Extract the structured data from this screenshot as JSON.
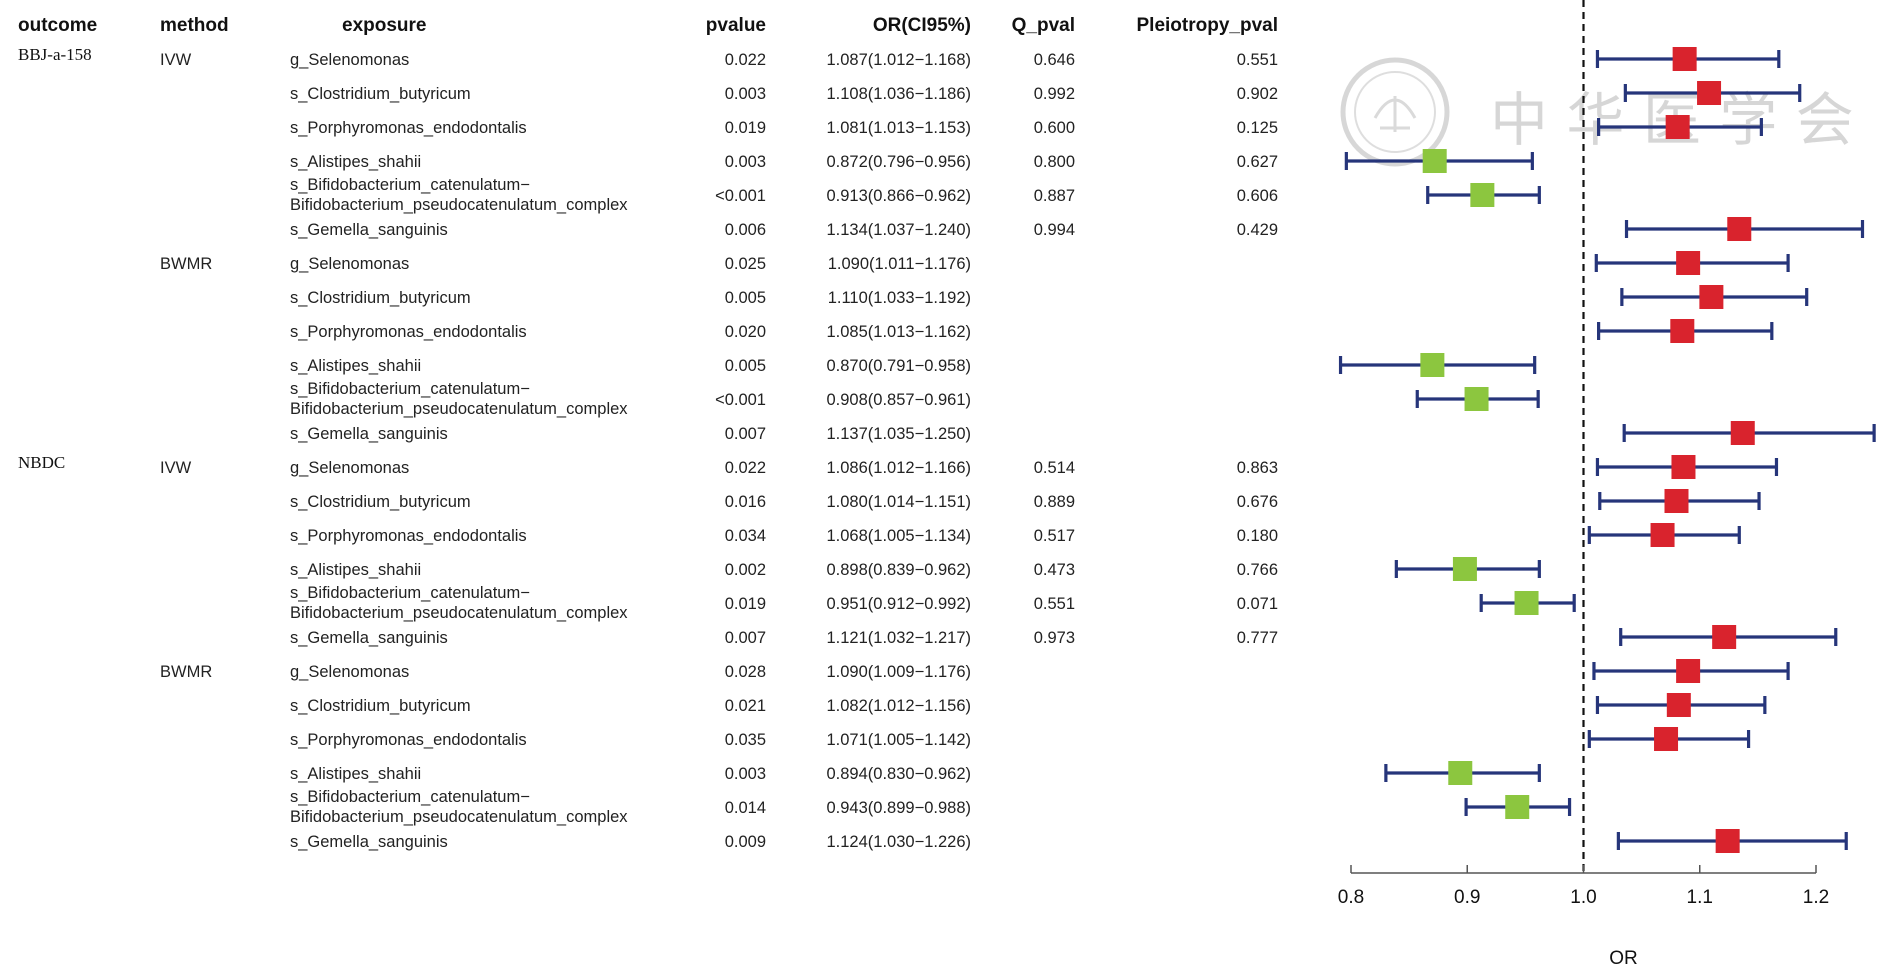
{
  "chart_data": {
    "type": "forest",
    "headers": {
      "outcome": "outcome",
      "method": "method",
      "exposure": "exposure",
      "pvalue": "pvalue",
      "or_ci": "OR(CI95%)",
      "q_pval": "Q_pval",
      "pleiotropy_pval": "Pleiotropy_pval"
    },
    "xlabel": "OR",
    "xlim": [
      0.8,
      1.2
    ],
    "xticks": [
      "0.8",
      "0.9",
      "1.0",
      "1.1",
      "1.2"
    ],
    "reference_line": 1.0,
    "colors": {
      "protective": "#8cc63f",
      "risk": "#d9232d",
      "ci": "#26357a"
    },
    "watermark": {
      "text": "中 华 医 学 会"
    },
    "rows": [
      {
        "outcome": "BBJ-a-158",
        "method": "IVW",
        "exposure": [
          "g_Selenomonas"
        ],
        "pvalue": "0.022",
        "or_ci": "1.087(1.012−1.168)",
        "q_pval": "0.646",
        "pleio_pval": "0.551",
        "or": 1.087,
        "lo": 1.012,
        "hi": 1.168
      },
      {
        "outcome": "",
        "method": "",
        "exposure": [
          "s_Clostridium_butyricum"
        ],
        "pvalue": "0.003",
        "or_ci": "1.108(1.036−1.186)",
        "q_pval": "0.992",
        "pleio_pval": "0.902",
        "or": 1.108,
        "lo": 1.036,
        "hi": 1.186
      },
      {
        "outcome": "",
        "method": "",
        "exposure": [
          "s_Porphyromonas_endodontalis"
        ],
        "pvalue": "0.019",
        "or_ci": "1.081(1.013−1.153)",
        "q_pval": "0.600",
        "pleio_pval": "0.125",
        "or": 1.081,
        "lo": 1.013,
        "hi": 1.153
      },
      {
        "outcome": "",
        "method": "",
        "exposure": [
          "s_Alistipes_shahii"
        ],
        "pvalue": "0.003",
        "or_ci": "0.872(0.796−0.956)",
        "q_pval": "0.800",
        "pleio_pval": "0.627",
        "or": 0.872,
        "lo": 0.796,
        "hi": 0.956
      },
      {
        "outcome": "",
        "method": "",
        "exposure": [
          "s_Bifidobacterium_catenulatum−",
          "Bifidobacterium_pseudocatenulatum_complex"
        ],
        "pvalue": "<0.001",
        "or_ci": "0.913(0.866−0.962)",
        "q_pval": "0.887",
        "pleio_pval": "0.606",
        "or": 0.913,
        "lo": 0.866,
        "hi": 0.962
      },
      {
        "outcome": "",
        "method": "",
        "exposure": [
          "s_Gemella_sanguinis"
        ],
        "pvalue": "0.006",
        "or_ci": "1.134(1.037−1.240)",
        "q_pval": "0.994",
        "pleio_pval": "0.429",
        "or": 1.134,
        "lo": 1.037,
        "hi": 1.24
      },
      {
        "outcome": "",
        "method": "BWMR",
        "exposure": [
          "g_Selenomonas"
        ],
        "pvalue": "0.025",
        "or_ci": "1.090(1.011−1.176)",
        "q_pval": "",
        "pleio_pval": "",
        "or": 1.09,
        "lo": 1.011,
        "hi": 1.176
      },
      {
        "outcome": "",
        "method": "",
        "exposure": [
          "s_Clostridium_butyricum"
        ],
        "pvalue": "0.005",
        "or_ci": "1.110(1.033−1.192)",
        "q_pval": "",
        "pleio_pval": "",
        "or": 1.11,
        "lo": 1.033,
        "hi": 1.192
      },
      {
        "outcome": "",
        "method": "",
        "exposure": [
          "s_Porphyromonas_endodontalis"
        ],
        "pvalue": "0.020",
        "or_ci": "1.085(1.013−1.162)",
        "q_pval": "",
        "pleio_pval": "",
        "or": 1.085,
        "lo": 1.013,
        "hi": 1.162
      },
      {
        "outcome": "",
        "method": "",
        "exposure": [
          "s_Alistipes_shahii"
        ],
        "pvalue": "0.005",
        "or_ci": "0.870(0.791−0.958)",
        "q_pval": "",
        "pleio_pval": "",
        "or": 0.87,
        "lo": 0.791,
        "hi": 0.958
      },
      {
        "outcome": "",
        "method": "",
        "exposure": [
          "s_Bifidobacterium_catenulatum−",
          "Bifidobacterium_pseudocatenulatum_complex"
        ],
        "pvalue": "<0.001",
        "or_ci": "0.908(0.857−0.961)",
        "q_pval": "",
        "pleio_pval": "",
        "or": 0.908,
        "lo": 0.857,
        "hi": 0.961
      },
      {
        "outcome": "",
        "method": "",
        "exposure": [
          "s_Gemella_sanguinis"
        ],
        "pvalue": "0.007",
        "or_ci": "1.137(1.035−1.250)",
        "q_pval": "",
        "pleio_pval": "",
        "or": 1.137,
        "lo": 1.035,
        "hi": 1.25
      },
      {
        "outcome": "NBDC",
        "method": "IVW",
        "exposure": [
          "g_Selenomonas"
        ],
        "pvalue": "0.022",
        "or_ci": "1.086(1.012−1.166)",
        "q_pval": "0.514",
        "pleio_pval": "0.863",
        "or": 1.086,
        "lo": 1.012,
        "hi": 1.166
      },
      {
        "outcome": "",
        "method": "",
        "exposure": [
          "s_Clostridium_butyricum"
        ],
        "pvalue": "0.016",
        "or_ci": "1.080(1.014−1.151)",
        "q_pval": "0.889",
        "pleio_pval": "0.676",
        "or": 1.08,
        "lo": 1.014,
        "hi": 1.151
      },
      {
        "outcome": "",
        "method": "",
        "exposure": [
          "s_Porphyromonas_endodontalis"
        ],
        "pvalue": "0.034",
        "or_ci": "1.068(1.005−1.134)",
        "q_pval": "0.517",
        "pleio_pval": "0.180",
        "or": 1.068,
        "lo": 1.005,
        "hi": 1.134
      },
      {
        "outcome": "",
        "method": "",
        "exposure": [
          "s_Alistipes_shahii"
        ],
        "pvalue": "0.002",
        "or_ci": "0.898(0.839−0.962)",
        "q_pval": "0.473",
        "pleio_pval": "0.766",
        "or": 0.898,
        "lo": 0.839,
        "hi": 0.962
      },
      {
        "outcome": "",
        "method": "",
        "exposure": [
          "s_Bifidobacterium_catenulatum−",
          "Bifidobacterium_pseudocatenulatum_complex"
        ],
        "pvalue": "0.019",
        "or_ci": "0.951(0.912−0.992)",
        "q_pval": "0.551",
        "pleio_pval": "0.071",
        "or": 0.951,
        "lo": 0.912,
        "hi": 0.992
      },
      {
        "outcome": "",
        "method": "",
        "exposure": [
          "s_Gemella_sanguinis"
        ],
        "pvalue": "0.007",
        "or_ci": "1.121(1.032−1.217)",
        "q_pval": "0.973",
        "pleio_pval": "0.777",
        "or": 1.121,
        "lo": 1.032,
        "hi": 1.217
      },
      {
        "outcome": "",
        "method": "BWMR",
        "exposure": [
          "g_Selenomonas"
        ],
        "pvalue": "0.028",
        "or_ci": "1.090(1.009−1.176)",
        "q_pval": "",
        "pleio_pval": "",
        "or": 1.09,
        "lo": 1.009,
        "hi": 1.176
      },
      {
        "outcome": "",
        "method": "",
        "exposure": [
          "s_Clostridium_butyricum"
        ],
        "pvalue": "0.021",
        "or_ci": "1.082(1.012−1.156)",
        "q_pval": "",
        "pleio_pval": "",
        "or": 1.082,
        "lo": 1.012,
        "hi": 1.156
      },
      {
        "outcome": "",
        "method": "",
        "exposure": [
          "s_Porphyromonas_endodontalis"
        ],
        "pvalue": "0.035",
        "or_ci": "1.071(1.005−1.142)",
        "q_pval": "",
        "pleio_pval": "",
        "or": 1.071,
        "lo": 1.005,
        "hi": 1.142
      },
      {
        "outcome": "",
        "method": "",
        "exposure": [
          "s_Alistipes_shahii"
        ],
        "pvalue": "0.003",
        "or_ci": "0.894(0.830−0.962)",
        "q_pval": "",
        "pleio_pval": "",
        "or": 0.894,
        "lo": 0.83,
        "hi": 0.962
      },
      {
        "outcome": "",
        "method": "",
        "exposure": [
          "s_Bifidobacterium_catenulatum−",
          "Bifidobacterium_pseudocatenulatum_complex"
        ],
        "pvalue": "0.014",
        "or_ci": "0.943(0.899−0.988)",
        "q_pval": "",
        "pleio_pval": "",
        "or": 0.943,
        "lo": 0.899,
        "hi": 0.988
      },
      {
        "outcome": "",
        "method": "",
        "exposure": [
          "s_Gemella_sanguinis"
        ],
        "pvalue": "0.009",
        "or_ci": "1.124(1.030−1.226)",
        "q_pval": "",
        "pleio_pval": "",
        "or": 1.124,
        "lo": 1.03,
        "hi": 1.226
      }
    ]
  }
}
